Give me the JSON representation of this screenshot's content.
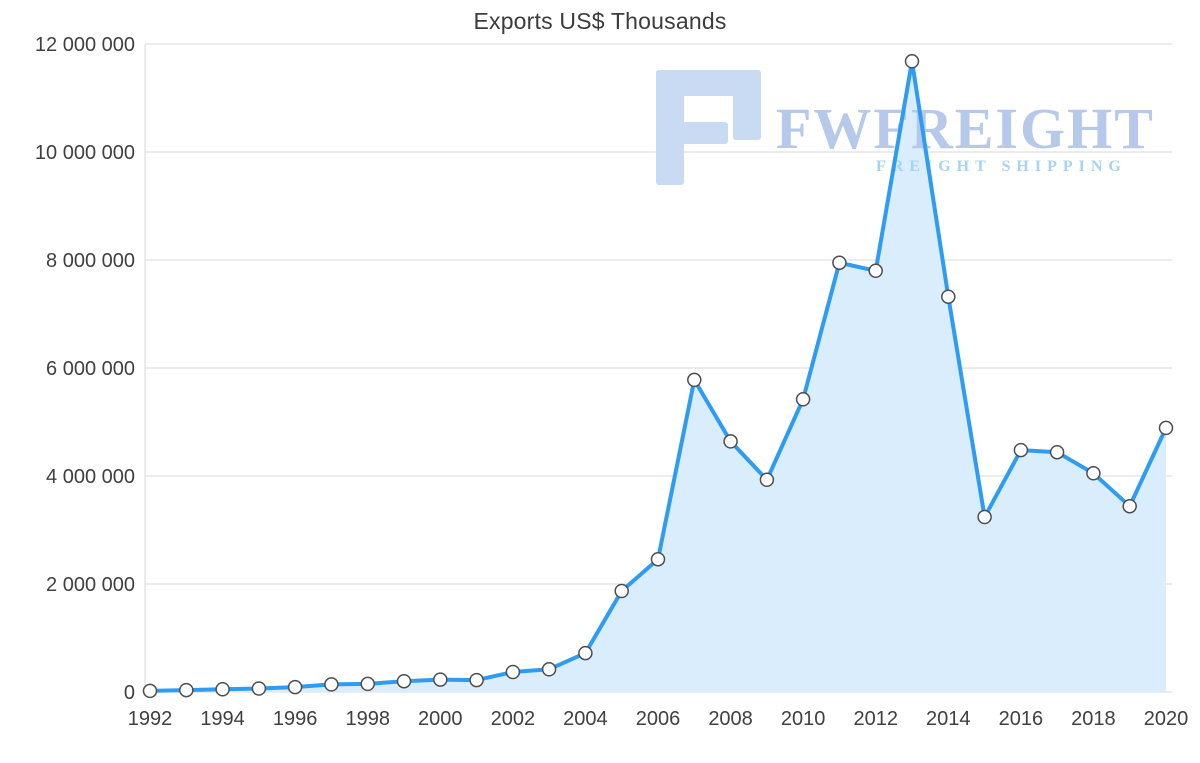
{
  "chart_data": {
    "type": "area",
    "title": "Exports US$ Thousands",
    "xlabel": "",
    "ylabel": "",
    "x": [
      1992,
      1993,
      1994,
      1995,
      1996,
      1997,
      1998,
      1999,
      2000,
      2001,
      2002,
      2003,
      2004,
      2005,
      2006,
      2007,
      2008,
      2009,
      2010,
      2011,
      2012,
      2013,
      2014,
      2015,
      2016,
      2017,
      2018,
      2019,
      2020
    ],
    "values": [
      20000,
      35000,
      50000,
      65000,
      90000,
      140000,
      150000,
      200000,
      230000,
      220000,
      370000,
      420000,
      720000,
      1870000,
      2460000,
      5780000,
      4640000,
      3930000,
      5420000,
      7950000,
      7800000,
      11680000,
      7320000,
      3240000,
      4480000,
      4440000,
      4050000,
      3440000,
      4890000
    ],
    "ylim": [
      0,
      12000000
    ],
    "y_ticks": [
      0,
      2000000,
      4000000,
      6000000,
      8000000,
      10000000,
      12000000
    ],
    "y_tick_labels": [
      "0",
      "2 000 000",
      "4 000 000",
      "6 000 000",
      "8 000 000",
      "10 000 000",
      "12 000 000"
    ],
    "x_tick_years": [
      1992,
      1994,
      1996,
      1998,
      2000,
      2002,
      2004,
      2006,
      2008,
      2010,
      2012,
      2014,
      2016,
      2018,
      2020
    ],
    "x_tick_labels": [
      "1992",
      "1994",
      "1996",
      "1998",
      "2000",
      "2002",
      "2004",
      "2006",
      "2008",
      "2010",
      "2012",
      "2014",
      "2016",
      "2018",
      "2020"
    ],
    "grid": true,
    "legend": "none",
    "colors": {
      "line": "#2e9cf3",
      "fill": "#d9edfc",
      "marker_fill": "#ffffff",
      "marker_stroke": "#4d4d4d",
      "grid": "#d9d9d9",
      "axis_text": "#404040",
      "title_text": "#3c3c3c"
    }
  },
  "watermark": {
    "brand": "FWFREIGHT",
    "subtitle": "FREIGHT SHIPPING",
    "logo": "fwfreight-logo",
    "colors": {
      "brand_text": "#b7c9ea",
      "subtitle_text": "#a6d3f1",
      "logo": "#c9daf3"
    }
  }
}
